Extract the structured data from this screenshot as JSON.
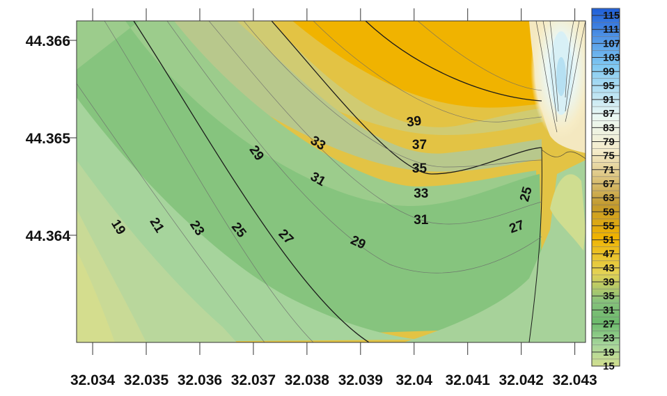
{
  "chart_data": {
    "type": "heatmap",
    "subtype": "filled-contour",
    "title": "",
    "xlabel": "",
    "ylabel": "",
    "x_ticks": [
      "32.034",
      "32.035",
      "32.036",
      "32.037",
      "32.038",
      "32.039",
      "32.04",
      "32.041",
      "32.042",
      "32.043"
    ],
    "y_ticks": [
      "44.366",
      "44.365",
      "44.364"
    ],
    "xlim": [
      32.0337,
      32.0432
    ],
    "ylim": [
      44.3629,
      44.3662
    ],
    "colorbar": {
      "position": "right",
      "ticks": [
        "115",
        "111",
        "107",
        "103",
        "99",
        "95",
        "91",
        "87",
        "83",
        "79",
        "75",
        "71",
        "67",
        "63",
        "59",
        "55",
        "51",
        "47",
        "43",
        "39",
        "35",
        "31",
        "27",
        "23",
        "19",
        "15"
      ],
      "range": [
        15,
        117
      ],
      "step": 2
    },
    "contour_labels": [
      {
        "text": "19",
        "x": 32.03447,
        "y": 44.36408,
        "rotation": 58
      },
      {
        "text": "21",
        "x": 32.03519,
        "y": 44.3641,
        "rotation": 58
      },
      {
        "text": "23",
        "x": 32.03594,
        "y": 44.36407,
        "rotation": 56
      },
      {
        "text": "25",
        "x": 32.03672,
        "y": 44.36405,
        "rotation": 52
      },
      {
        "text": "27",
        "x": 32.0376,
        "y": 44.36398,
        "rotation": 45
      },
      {
        "text": "29",
        "x": 32.03895,
        "y": 44.36392,
        "rotation": 25
      },
      {
        "text": "29",
        "x": 32.03705,
        "y": 44.36484,
        "rotation": 55
      },
      {
        "text": "31",
        "x": 32.0382,
        "y": 44.36457,
        "rotation": 30
      },
      {
        "text": "31",
        "x": 32.04013,
        "y": 44.36415,
        "rotation": 0
      },
      {
        "text": "33",
        "x": 32.0382,
        "y": 44.36494,
        "rotation": 32
      },
      {
        "text": "33",
        "x": 32.04013,
        "y": 44.36442,
        "rotation": 0
      },
      {
        "text": "35",
        "x": 32.0401,
        "y": 44.36468,
        "rotation": 0
      },
      {
        "text": "37",
        "x": 32.0401,
        "y": 44.36492,
        "rotation": 0
      },
      {
        "text": "39",
        "x": 32.04,
        "y": 44.36516,
        "rotation": -8
      },
      {
        "text": "25",
        "x": 32.0421,
        "y": 44.36442,
        "rotation": -75
      },
      {
        "text": "27",
        "x": 32.04192,
        "y": 44.36408,
        "rotation": -20
      }
    ],
    "colors": {
      "low": "#cdd98c",
      "mid": "#74bd72",
      "high_warm": "#f0b300",
      "high_cold": "#1f5ed8",
      "contour_line": "#1a1a1a"
    }
  }
}
